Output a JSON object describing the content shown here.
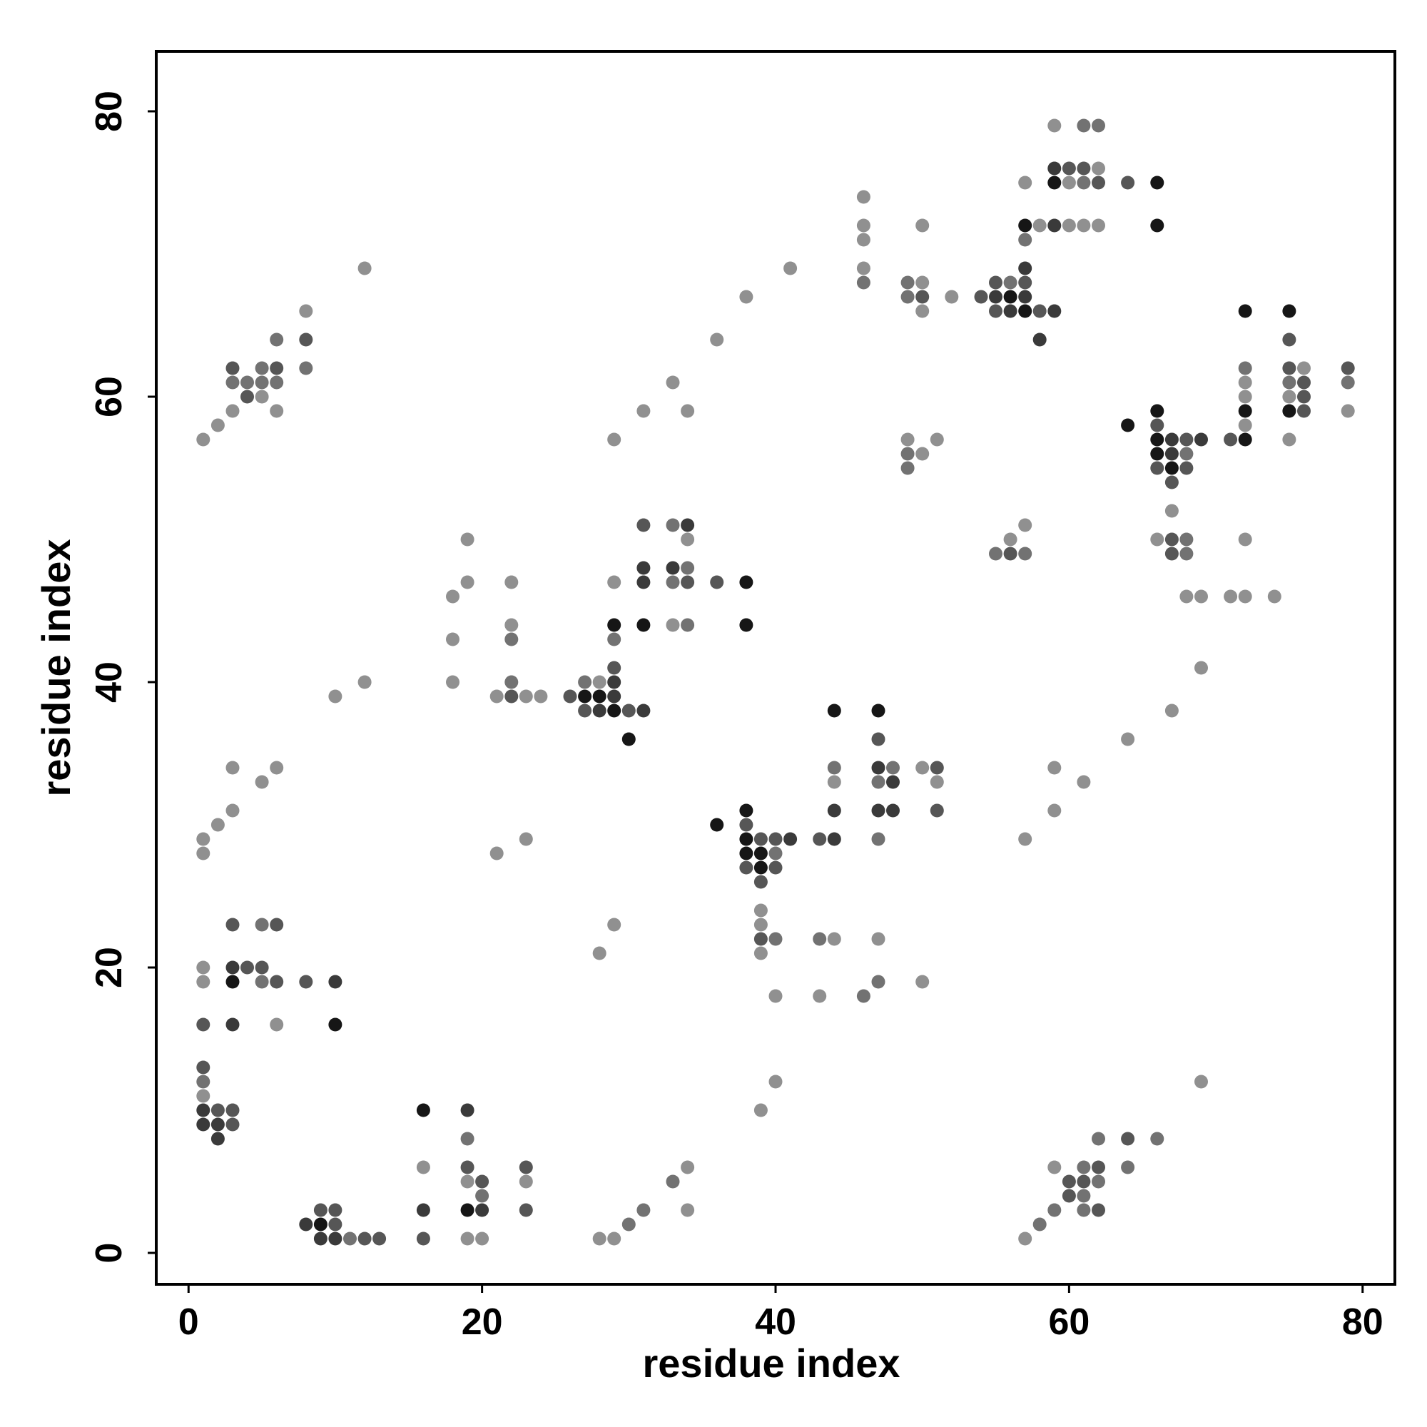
{
  "chart_data": {
    "type": "scatter",
    "title": "",
    "xlabel": "residue index",
    "ylabel": "residue index",
    "xlim": [
      -2.2,
      82.2
    ],
    "ylim": [
      -2.2,
      84.2
    ],
    "xticks": [
      0,
      20,
      40,
      60,
      80
    ],
    "yticks": [
      0,
      20,
      40,
      60,
      80
    ],
    "grid": false,
    "legend": "none",
    "shade_colors": {
      "1": "#909090",
      "2": "#727272",
      "3": "#565656",
      "4": "#3a3a3a",
      "5": "#161616"
    },
    "points": [
      [
        1,
        57,
        1
      ],
      [
        2,
        58,
        1
      ],
      [
        3,
        59,
        1
      ],
      [
        3,
        61,
        2
      ],
      [
        3,
        62,
        3
      ],
      [
        4,
        61,
        2
      ],
      [
        4,
        60,
        3
      ],
      [
        5,
        60,
        1
      ],
      [
        5,
        61,
        2
      ],
      [
        5,
        62,
        2
      ],
      [
        6,
        62,
        3
      ],
      [
        6,
        61,
        2
      ],
      [
        6,
        59,
        1
      ],
      [
        6,
        64,
        2
      ],
      [
        8,
        66,
        1
      ],
      [
        8,
        64,
        3
      ],
      [
        8,
        62,
        2
      ],
      [
        12,
        69,
        1
      ],
      [
        1,
        29,
        1
      ],
      [
        1,
        28,
        1
      ],
      [
        2,
        30,
        1
      ],
      [
        3,
        31,
        1
      ],
      [
        3,
        34,
        1
      ],
      [
        5,
        33,
        1
      ],
      [
        6,
        34,
        1
      ],
      [
        3,
        23,
        3
      ],
      [
        5,
        23,
        2
      ],
      [
        6,
        23,
        3
      ],
      [
        1,
        20,
        1
      ],
      [
        3,
        20,
        4
      ],
      [
        4,
        20,
        3
      ],
      [
        5,
        20,
        3
      ],
      [
        1,
        19,
        1
      ],
      [
        3,
        19,
        5
      ],
      [
        5,
        19,
        2
      ],
      [
        6,
        19,
        3
      ],
      [
        8,
        19,
        3
      ],
      [
        10,
        19,
        4
      ],
      [
        1,
        16,
        3
      ],
      [
        3,
        16,
        4
      ],
      [
        6,
        16,
        1
      ],
      [
        10,
        16,
        5
      ],
      [
        1,
        13,
        3
      ],
      [
        1,
        12,
        2
      ],
      [
        1,
        11,
        1
      ],
      [
        1,
        10,
        4
      ],
      [
        2,
        10,
        3
      ],
      [
        3,
        10,
        3
      ],
      [
        1,
        9,
        4
      ],
      [
        2,
        9,
        4
      ],
      [
        3,
        9,
        3
      ],
      [
        2,
        8,
        4
      ],
      [
        8,
        2,
        4
      ],
      [
        9,
        3,
        3
      ],
      [
        10,
        3,
        3
      ],
      [
        9,
        2,
        5
      ],
      [
        10,
        2,
        3
      ],
      [
        9,
        1,
        4
      ],
      [
        10,
        1,
        4
      ],
      [
        11,
        1,
        2
      ],
      [
        12,
        1,
        3
      ],
      [
        13,
        1,
        3
      ],
      [
        16,
        10,
        5
      ],
      [
        16,
        6,
        1
      ],
      [
        16,
        3,
        4
      ],
      [
        16,
        1,
        3
      ],
      [
        19,
        10,
        4
      ],
      [
        19,
        8,
        2
      ],
      [
        19,
        6,
        3
      ],
      [
        19,
        5,
        1
      ],
      [
        20,
        5,
        3
      ],
      [
        20,
        4,
        2
      ],
      [
        19,
        3,
        5
      ],
      [
        20,
        3,
        4
      ],
      [
        19,
        1,
        1
      ],
      [
        20,
        1,
        1
      ],
      [
        23,
        6,
        3
      ],
      [
        23,
        5,
        1
      ],
      [
        23,
        3,
        3
      ],
      [
        28,
        1,
        1
      ],
      [
        29,
        1,
        1
      ],
      [
        30,
        2,
        2
      ],
      [
        31,
        3,
        2
      ],
      [
        33,
        5,
        2
      ],
      [
        34,
        6,
        1
      ],
      [
        34,
        3,
        1
      ],
      [
        10,
        39,
        1
      ],
      [
        12,
        40,
        1
      ],
      [
        18,
        46,
        1
      ],
      [
        18,
        43,
        1
      ],
      [
        18,
        40,
        1
      ],
      [
        19,
        50,
        1
      ],
      [
        19,
        47,
        1
      ],
      [
        22,
        47,
        1
      ],
      [
        22,
        44,
        1
      ],
      [
        22,
        43,
        2
      ],
      [
        22,
        40,
        2
      ],
      [
        21,
        39,
        1
      ],
      [
        22,
        39,
        3
      ],
      [
        23,
        39,
        1
      ],
      [
        24,
        39,
        1
      ],
      [
        26,
        39,
        3
      ],
      [
        27,
        40,
        2
      ],
      [
        28,
        40,
        1
      ],
      [
        29,
        40,
        4
      ],
      [
        27,
        39,
        5
      ],
      [
        28,
        39,
        5
      ],
      [
        29,
        39,
        4
      ],
      [
        27,
        38,
        3
      ],
      [
        28,
        38,
        4
      ],
      [
        29,
        38,
        5
      ],
      [
        30,
        38,
        3
      ],
      [
        31,
        38,
        4
      ],
      [
        29,
        41,
        3
      ],
      [
        29,
        43,
        2
      ],
      [
        29,
        44,
        5
      ],
      [
        29,
        47,
        1
      ],
      [
        30,
        36,
        5
      ],
      [
        31,
        44,
        5
      ],
      [
        31,
        47,
        4
      ],
      [
        31,
        48,
        4
      ],
      [
        31,
        51,
        3
      ],
      [
        33,
        51,
        2
      ],
      [
        34,
        51,
        4
      ],
      [
        34,
        50,
        1
      ],
      [
        33,
        48,
        4
      ],
      [
        34,
        48,
        2
      ],
      [
        33,
        47,
        2
      ],
      [
        34,
        47,
        3
      ],
      [
        33,
        44,
        1
      ],
      [
        34,
        44,
        2
      ],
      [
        36,
        47,
        3
      ],
      [
        38,
        47,
        5
      ],
      [
        38,
        44,
        5
      ],
      [
        21,
        28,
        1
      ],
      [
        23,
        29,
        1
      ],
      [
        28,
        21,
        1
      ],
      [
        29,
        23,
        1
      ],
      [
        36,
        30,
        5
      ],
      [
        38,
        31,
        5
      ],
      [
        38,
        30,
        3
      ],
      [
        38,
        29,
        5
      ],
      [
        39,
        29,
        3
      ],
      [
        40,
        29,
        3
      ],
      [
        41,
        29,
        4
      ],
      [
        38,
        28,
        5
      ],
      [
        39,
        28,
        5
      ],
      [
        40,
        28,
        2
      ],
      [
        38,
        27,
        3
      ],
      [
        39,
        27,
        5
      ],
      [
        40,
        27,
        3
      ],
      [
        39,
        26,
        3
      ],
      [
        39,
        24,
        1
      ],
      [
        39,
        23,
        1
      ],
      [
        39,
        22,
        3
      ],
      [
        40,
        22,
        2
      ],
      [
        39,
        21,
        1
      ],
      [
        40,
        18,
        1
      ],
      [
        40,
        12,
        1
      ],
      [
        39,
        10,
        1
      ],
      [
        43,
        22,
        2
      ],
      [
        44,
        22,
        1
      ],
      [
        43,
        18,
        1
      ],
      [
        46,
        18,
        2
      ],
      [
        47,
        22,
        1
      ],
      [
        47,
        19,
        2
      ],
      [
        50,
        19,
        1
      ],
      [
        43,
        29,
        3
      ],
      [
        44,
        29,
        4
      ],
      [
        44,
        31,
        4
      ],
      [
        44,
        33,
        1
      ],
      [
        44,
        34,
        2
      ],
      [
        44,
        38,
        5
      ],
      [
        47,
        38,
        5
      ],
      [
        47,
        36,
        3
      ],
      [
        47,
        34,
        4
      ],
      [
        48,
        34,
        2
      ],
      [
        47,
        33,
        2
      ],
      [
        48,
        33,
        4
      ],
      [
        47,
        31,
        4
      ],
      [
        48,
        31,
        4
      ],
      [
        47,
        29,
        2
      ],
      [
        50,
        34,
        1
      ],
      [
        51,
        34,
        3
      ],
      [
        51,
        33,
        1
      ],
      [
        51,
        31,
        3
      ],
      [
        36,
        64,
        1
      ],
      [
        38,
        67,
        1
      ],
      [
        41,
        69,
        1
      ],
      [
        29,
        57,
        1
      ],
      [
        31,
        59,
        1
      ],
      [
        33,
        61,
        1
      ],
      [
        34,
        59,
        1
      ],
      [
        46,
        74,
        1
      ],
      [
        46,
        72,
        1
      ],
      [
        46,
        71,
        1
      ],
      [
        46,
        69,
        1
      ],
      [
        46,
        68,
        2
      ],
      [
        49,
        68,
        2
      ],
      [
        50,
        68,
        1
      ],
      [
        50,
        72,
        1
      ],
      [
        49,
        67,
        2
      ],
      [
        50,
        67,
        3
      ],
      [
        50,
        66,
        1
      ],
      [
        52,
        67,
        1
      ],
      [
        49,
        57,
        1
      ],
      [
        49,
        56,
        2
      ],
      [
        50,
        56,
        1
      ],
      [
        49,
        55,
        2
      ],
      [
        51,
        57,
        1
      ],
      [
        54,
        67,
        3
      ],
      [
        55,
        68,
        3
      ],
      [
        56,
        68,
        2
      ],
      [
        57,
        68,
        3
      ],
      [
        55,
        67,
        4
      ],
      [
        56,
        67,
        5
      ],
      [
        57,
        67,
        4
      ],
      [
        55,
        66,
        3
      ],
      [
        56,
        66,
        4
      ],
      [
        57,
        66,
        5
      ],
      [
        58,
        66,
        3
      ],
      [
        59,
        66,
        4
      ],
      [
        57,
        69,
        4
      ],
      [
        57,
        71,
        2
      ],
      [
        57,
        72,
        5
      ],
      [
        58,
        72,
        1
      ],
      [
        59,
        72,
        4
      ],
      [
        57,
        75,
        1
      ],
      [
        58,
        64,
        4
      ],
      [
        59,
        79,
        1
      ],
      [
        61,
        79,
        2
      ],
      [
        62,
        79,
        2
      ],
      [
        59,
        76,
        4
      ],
      [
        60,
        76,
        3
      ],
      [
        61,
        76,
        3
      ],
      [
        62,
        76,
        1
      ],
      [
        59,
        75,
        5
      ],
      [
        60,
        75,
        1
      ],
      [
        61,
        75,
        2
      ],
      [
        62,
        75,
        3
      ],
      [
        60,
        72,
        1
      ],
      [
        61,
        72,
        1
      ],
      [
        62,
        72,
        1
      ],
      [
        64,
        75,
        3
      ],
      [
        66,
        75,
        5
      ],
      [
        66,
        72,
        5
      ],
      [
        55,
        49,
        2
      ],
      [
        56,
        50,
        1
      ],
      [
        56,
        49,
        3
      ],
      [
        57,
        51,
        1
      ],
      [
        57,
        49,
        2
      ],
      [
        57,
        29,
        1
      ],
      [
        59,
        34,
        1
      ],
      [
        59,
        31,
        1
      ],
      [
        61,
        33,
        1
      ],
      [
        64,
        36,
        1
      ],
      [
        67,
        38,
        1
      ],
      [
        69,
        41,
        1
      ],
      [
        69,
        12,
        1
      ],
      [
        57,
        1,
        1
      ],
      [
        58,
        2,
        2
      ],
      [
        59,
        6,
        1
      ],
      [
        59,
        3,
        2
      ],
      [
        60,
        5,
        3
      ],
      [
        60,
        4,
        3
      ],
      [
        61,
        6,
        2
      ],
      [
        61,
        5,
        3
      ],
      [
        61,
        4,
        2
      ],
      [
        61,
        3,
        2
      ],
      [
        62,
        8,
        2
      ],
      [
        62,
        6,
        3
      ],
      [
        62,
        5,
        2
      ],
      [
        62,
        3,
        3
      ],
      [
        64,
        8,
        3
      ],
      [
        64,
        6,
        2
      ],
      [
        66,
        8,
        2
      ],
      [
        64,
        58,
        5
      ],
      [
        66,
        59,
        5
      ],
      [
        66,
        58,
        3
      ],
      [
        66,
        57,
        5
      ],
      [
        67,
        57,
        4
      ],
      [
        68,
        57,
        3
      ],
      [
        69,
        57,
        4
      ],
      [
        66,
        56,
        5
      ],
      [
        67,
        56,
        4
      ],
      [
        68,
        56,
        2
      ],
      [
        66,
        55,
        3
      ],
      [
        67,
        55,
        5
      ],
      [
        68,
        55,
        3
      ],
      [
        67,
        54,
        3
      ],
      [
        67,
        52,
        1
      ],
      [
        66,
        50,
        1
      ],
      [
        67,
        50,
        3
      ],
      [
        68,
        50,
        2
      ],
      [
        67,
        49,
        3
      ],
      [
        68,
        49,
        2
      ],
      [
        68,
        46,
        1
      ],
      [
        69,
        46,
        1
      ],
      [
        71,
        46,
        1
      ],
      [
        72,
        46,
        1
      ],
      [
        74,
        46,
        1
      ],
      [
        72,
        50,
        1
      ],
      [
        71,
        57,
        3
      ],
      [
        72,
        57,
        5
      ],
      [
        72,
        58,
        1
      ],
      [
        72,
        59,
        5
      ],
      [
        72,
        60,
        1
      ],
      [
        72,
        61,
        1
      ],
      [
        72,
        62,
        2
      ],
      [
        72,
        66,
        5
      ],
      [
        75,
        66,
        5
      ],
      [
        75,
        64,
        3
      ],
      [
        75,
        62,
        3
      ],
      [
        76,
        62,
        1
      ],
      [
        75,
        61,
        2
      ],
      [
        76,
        61,
        3
      ],
      [
        75,
        60,
        1
      ],
      [
        76,
        60,
        3
      ],
      [
        75,
        59,
        5
      ],
      [
        76,
        59,
        3
      ],
      [
        75,
        57,
        1
      ],
      [
        79,
        62,
        3
      ],
      [
        79,
        61,
        2
      ],
      [
        79,
        59,
        1
      ]
    ]
  }
}
